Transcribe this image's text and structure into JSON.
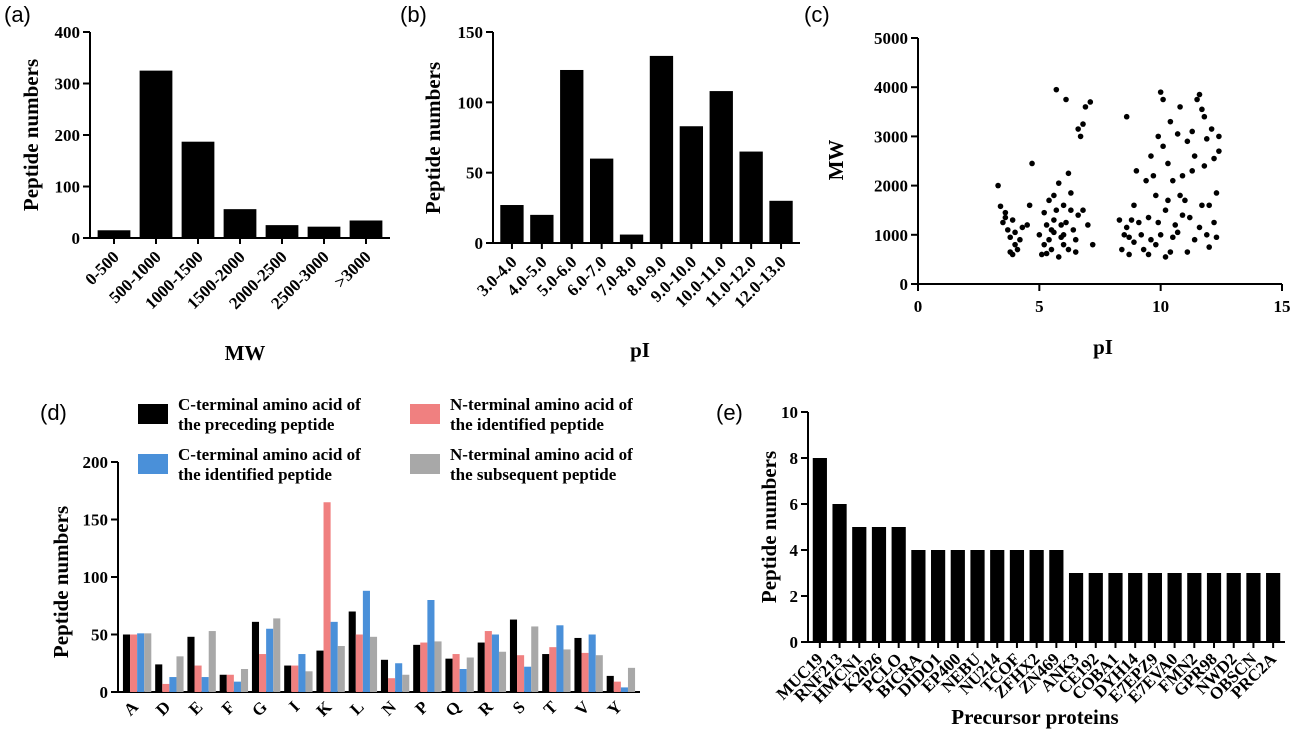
{
  "colors": {
    "black": "#000000",
    "blue": "#4a90d9",
    "red": "#f08080",
    "gray": "#a8a8a8"
  },
  "chart_data": [
    {
      "panel": "(a)",
      "type": "bar",
      "xlabel": "MW",
      "ylabel": "Peptide numbers",
      "categories": [
        "0-500",
        "500-1000",
        "1000-1500",
        "1500-2000",
        "2000-2500",
        "2500-3000",
        ">3000"
      ],
      "values": [
        15,
        325,
        187,
        56,
        25,
        22,
        34
      ],
      "ylim": [
        0,
        400
      ],
      "yticks": [
        0,
        100,
        200,
        300,
        400
      ],
      "grid": false
    },
    {
      "panel": "(b)",
      "type": "bar",
      "xlabel": "pI",
      "ylabel": "Peptide numbers",
      "categories": [
        "3.0-4.0",
        "4.0-5.0",
        "5.0-6.0",
        "6.0-7.0",
        "7.0-8.0",
        "8.0-9.0",
        "9.0-10.0",
        "10.0-11.0",
        "11.0-12.0",
        "12.0-13.0"
      ],
      "values": [
        27,
        20,
        123,
        60,
        6,
        133,
        83,
        108,
        65,
        30
      ],
      "ylim": [
        0,
        150
      ],
      "yticks": [
        0,
        50,
        100,
        150
      ],
      "grid": false
    },
    {
      "panel": "(c)",
      "type": "scatter",
      "xlabel": "pI",
      "ylabel": "MW",
      "xlim": [
        0,
        15
      ],
      "ylim": [
        0,
        5000
      ],
      "xticks": [
        0,
        5,
        10,
        15
      ],
      "yticks": [
        0,
        1000,
        2000,
        3000,
        4000,
        5000
      ],
      "grid": false,
      "points": [
        [
          3.3,
          2000
        ],
        [
          3.4,
          1580
        ],
        [
          3.6,
          1450
        ],
        [
          3.5,
          1250
        ],
        [
          3.7,
          1100
        ],
        [
          3.8,
          950
        ],
        [
          3.9,
          1300
        ],
        [
          4.0,
          800
        ],
        [
          3.8,
          650
        ],
        [
          4.1,
          700
        ],
        [
          4.2,
          900
        ],
        [
          4.3,
          1150
        ],
        [
          4.5,
          1200
        ],
        [
          4.0,
          1050
        ],
        [
          3.6,
          1350
        ],
        [
          3.9,
          600
        ],
        [
          4.6,
          1600
        ],
        [
          4.7,
          2450
        ],
        [
          5.0,
          1000
        ],
        [
          5.2,
          800
        ],
        [
          5.3,
          620
        ],
        [
          5.4,
          900
        ],
        [
          5.5,
          1100
        ],
        [
          5.6,
          1300
        ],
        [
          5.7,
          1500
        ],
        [
          5.6,
          1800
        ],
        [
          5.8,
          2050
        ],
        [
          5.9,
          1200
        ],
        [
          5.2,
          1450
        ],
        [
          5.5,
          700
        ],
        [
          5.8,
          550
        ],
        [
          5.4,
          1700
        ],
        [
          5.7,
          3950
        ],
        [
          6.0,
          1000
        ],
        [
          6.1,
          1250
        ],
        [
          6.2,
          2250
        ],
        [
          6.0,
          800
        ],
        [
          6.3,
          1500
        ],
        [
          6.2,
          700
        ],
        [
          6.1,
          3750
        ],
        [
          6.4,
          1100
        ],
        [
          6.5,
          900
        ],
        [
          6.6,
          1400
        ],
        [
          6.5,
          650
        ],
        [
          6.6,
          3150
        ],
        [
          6.8,
          3250
        ],
        [
          6.7,
          3000
        ],
        [
          6.9,
          3600
        ],
        [
          7.1,
          3700
        ],
        [
          7.0,
          1200
        ],
        [
          6.8,
          1500
        ],
        [
          7.2,
          800
        ],
        [
          5.3,
          1200
        ],
        [
          5.9,
          950
        ],
        [
          6.3,
          1850
        ],
        [
          6.0,
          1600
        ],
        [
          5.1,
          600
        ],
        [
          5.6,
          1050
        ],
        [
          8.3,
          1300
        ],
        [
          8.4,
          700
        ],
        [
          8.5,
          1000
        ],
        [
          8.6,
          1150
        ],
        [
          8.7,
          950
        ],
        [
          8.6,
          3400
        ],
        [
          8.8,
          1300
        ],
        [
          8.9,
          850
        ],
        [
          8.7,
          600
        ],
        [
          8.9,
          1600
        ],
        [
          9.0,
          2300
        ],
        [
          9.1,
          1250
        ],
        [
          9.2,
          1000
        ],
        [
          9.3,
          700
        ],
        [
          9.4,
          2100
        ],
        [
          9.5,
          1350
        ],
        [
          9.6,
          900
        ],
        [
          9.5,
          600
        ],
        [
          9.7,
          2200
        ],
        [
          9.8,
          1800
        ],
        [
          9.9,
          1250
        ],
        [
          9.9,
          3000
        ],
        [
          10.0,
          3900
        ],
        [
          10.1,
          3750
        ],
        [
          10.2,
          1500
        ],
        [
          10.1,
          2800
        ],
        [
          10.3,
          2450
        ],
        [
          10.4,
          3300
        ],
        [
          10.5,
          950
        ],
        [
          10.4,
          650
        ],
        [
          10.6,
          1200
        ],
        [
          10.7,
          3050
        ],
        [
          10.8,
          1800
        ],
        [
          10.8,
          3600
        ],
        [
          10.9,
          2200
        ],
        [
          11.0,
          1700
        ],
        [
          11.1,
          2900
        ],
        [
          11.2,
          1350
        ],
        [
          11.3,
          3100
        ],
        [
          11.4,
          900
        ],
        [
          11.5,
          3750
        ],
        [
          11.6,
          3850
        ],
        [
          11.7,
          3550
        ],
        [
          11.6,
          1150
        ],
        [
          11.8,
          2400
        ],
        [
          11.9,
          1000
        ],
        [
          11.9,
          2950
        ],
        [
          12.0,
          750
        ],
        [
          12.1,
          3150
        ],
        [
          12.2,
          1250
        ],
        [
          12.3,
          1850
        ],
        [
          12.4,
          2700
        ],
        [
          12.4,
          3000
        ],
        [
          12.0,
          1600
        ],
        [
          9.8,
          800
        ],
        [
          10.0,
          1000
        ],
        [
          10.2,
          550
        ],
        [
          10.5,
          2100
        ],
        [
          10.9,
          1400
        ],
        [
          11.1,
          650
        ],
        [
          11.3,
          2300
        ],
        [
          11.7,
          1600
        ],
        [
          12.2,
          2550
        ],
        [
          9.6,
          2600
        ],
        [
          10.3,
          1700
        ],
        [
          10.7,
          1050
        ],
        [
          11.4,
          2600
        ],
        [
          11.8,
          3400
        ],
        [
          12.3,
          950
        ]
      ]
    },
    {
      "panel": "(d)",
      "type": "bar",
      "ylabel": "Peptide numbers",
      "categories": [
        "A",
        "D",
        "E",
        "F",
        "G",
        "I",
        "K",
        "L",
        "N",
        "P",
        "Q",
        "R",
        "S",
        "T",
        "V",
        "Y"
      ],
      "ylim": [
        0,
        200
      ],
      "yticks": [
        0,
        50,
        100,
        150,
        200
      ],
      "legend_position": "top",
      "series": [
        {
          "name": "C-terminal amino acid of the preceding peptide",
          "color": "#000000",
          "values": [
            50,
            24,
            48,
            15,
            61,
            23,
            36,
            70,
            28,
            41,
            29,
            43,
            63,
            33,
            47,
            14
          ]
        },
        {
          "name": "N-terminal amino acid of the identified peptide",
          "color": "#f08080",
          "values": [
            50,
            7,
            23,
            15,
            33,
            23,
            165,
            50,
            12,
            43,
            33,
            53,
            32,
            39,
            34,
            9
          ]
        },
        {
          "name": "C-terminal amino acid of the identified peptide",
          "color": "#4a90d9",
          "values": [
            51,
            13,
            13,
            9,
            55,
            33,
            61,
            88,
            25,
            80,
            20,
            50,
            22,
            58,
            50,
            4
          ]
        },
        {
          "name": "N-terminal amino acid of the subsequent peptide",
          "color": "#a8a8a8",
          "values": [
            51,
            31,
            53,
            20,
            64,
            18,
            40,
            48,
            15,
            44,
            30,
            35,
            57,
            37,
            32,
            21
          ]
        }
      ],
      "legend_order": [
        0,
        2,
        1,
        3
      ],
      "legend_lines": [
        [
          "C-terminal amino acid of",
          "the preceding peptide"
        ],
        [
          "N-terminal amino acid of",
          "the identified peptide"
        ],
        [
          "C-terminal amino acid of",
          "the identified peptide"
        ],
        [
          "N-terminal amino acid of",
          "the subsequent peptide"
        ]
      ]
    },
    {
      "panel": "(e)",
      "type": "bar",
      "xlabel": "Precursor proteins",
      "ylabel": "Peptide numbers",
      "categories": [
        "MUC19",
        "RNF213",
        "HMCN1",
        "K2026",
        "PCLO",
        "BICRA",
        "DIDO1",
        "EP400",
        "NEBU",
        "NU214",
        "TCOF",
        "ZFHX2",
        "ZN469",
        "ANK3",
        "CE192",
        "COBA1",
        "DYH14",
        "E7EPZ9",
        "E7EVA0",
        "FMN2",
        "GPR98",
        "NWD2",
        "OBSCN",
        "PRC2A"
      ],
      "values": [
        8,
        6,
        5,
        5,
        5,
        4,
        4,
        4,
        4,
        4,
        4,
        4,
        4,
        3,
        3,
        3,
        3,
        3,
        3,
        3,
        3,
        3,
        3,
        3
      ],
      "ylim": [
        0,
        10
      ],
      "yticks": [
        0,
        2,
        4,
        6,
        8,
        10
      ],
      "grid": false
    }
  ]
}
